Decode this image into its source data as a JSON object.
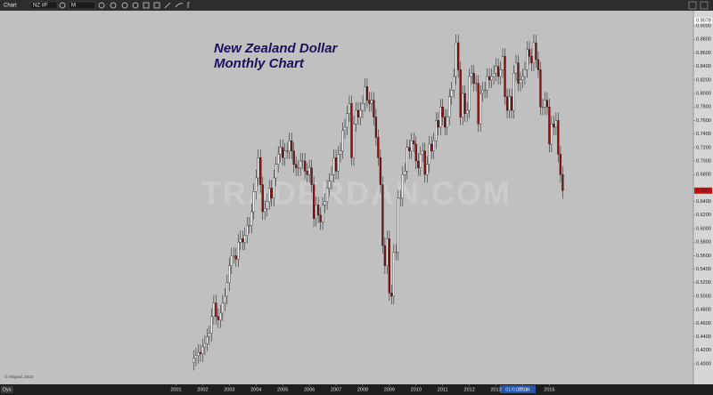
{
  "window": {
    "title": "Chart",
    "symbol": "NZ #F",
    "interval": "M",
    "range_button": "Dys",
    "copyright": "© eSignal, 2015",
    "watermark": "TRADERDAN.COM",
    "crosshair_date": "01/01/2014"
  },
  "chart_data": {
    "type": "candlestick",
    "title": "New Zealand Dollar",
    "subtitle": "Monthly Chart",
    "up_color": "#ffffff",
    "down_color": "#8b1010",
    "x": [
      2001.667,
      2001.75,
      2001.833,
      2001.917,
      2002,
      2002.083,
      2002.167,
      2002.25,
      2002.333,
      2002.417,
      2002.5,
      2002.583,
      2002.667,
      2002.75,
      2002.833,
      2002.917,
      2003,
      2003.083,
      2003.167,
      2003.25,
      2003.333,
      2003.417,
      2003.5,
      2003.583,
      2003.667,
      2003.75,
      2003.833,
      2003.917,
      2004,
      2004.083,
      2004.167,
      2004.25,
      2004.333,
      2004.417,
      2004.5,
      2004.583,
      2004.667,
      2004.75,
      2004.833,
      2004.917,
      2005,
      2005.083,
      2005.167,
      2005.25,
      2005.333,
      2005.417,
      2005.5,
      2005.583,
      2005.667,
      2005.75,
      2005.833,
      2005.917,
      2006,
      2006.083,
      2006.167,
      2006.25,
      2006.333,
      2006.417,
      2006.5,
      2006.583,
      2006.667,
      2006.75,
      2006.833,
      2006.917,
      2007,
      2007.083,
      2007.167,
      2007.25,
      2007.333,
      2007.417,
      2007.5,
      2007.583,
      2007.667,
      2007.75,
      2007.833,
      2007.917,
      2008,
      2008.083,
      2008.167,
      2008.25,
      2008.333,
      2008.417,
      2008.5,
      2008.583,
      2008.667,
      2008.75,
      2008.833,
      2008.917,
      2009,
      2009.083,
      2009.167,
      2009.25,
      2009.333,
      2009.417,
      2009.5,
      2009.583,
      2009.667,
      2009.75,
      2009.833,
      2009.917,
      2010,
      2010.083,
      2010.167,
      2010.25,
      2010.333,
      2010.417,
      2010.5,
      2010.583,
      2010.667,
      2010.75,
      2010.833,
      2010.917,
      2011,
      2011.083,
      2011.167,
      2011.25,
      2011.333,
      2011.417,
      2011.5,
      2011.583,
      2011.667,
      2011.75,
      2011.833,
      2011.917,
      2012,
      2012.083,
      2012.167,
      2012.25,
      2012.333,
      2012.417,
      2012.5,
      2012.583,
      2012.667,
      2012.75,
      2012.833,
      2012.917,
      2013,
      2013.083,
      2013.167,
      2013.25,
      2013.333,
      2013.417,
      2013.5,
      2013.583,
      2013.667,
      2013.75,
      2013.833,
      2013.917,
      2014,
      2014.083,
      2014.167,
      2014.25,
      2014.333,
      2014.417,
      2014.5,
      2014.583,
      2014.667,
      2014.75,
      2014.833,
      2014.917,
      2015,
      2015.083,
      2015.167,
      2015.25,
      2015.333,
      2015.417,
      2015.5
    ],
    "open": [
      0.402,
      0.408,
      0.412,
      0.417,
      0.415,
      0.425,
      0.43,
      0.44,
      0.445,
      0.47,
      0.49,
      0.47,
      0.465,
      0.475,
      0.49,
      0.5,
      0.52,
      0.545,
      0.56,
      0.56,
      0.555,
      0.58,
      0.585,
      0.58,
      0.59,
      0.605,
      0.605,
      0.625,
      0.655,
      0.675,
      0.705,
      0.665,
      0.625,
      0.63,
      0.64,
      0.66,
      0.645,
      0.675,
      0.695,
      0.71,
      0.72,
      0.705,
      0.715,
      0.715,
      0.73,
      0.715,
      0.695,
      0.69,
      0.69,
      0.7,
      0.7,
      0.685,
      0.68,
      0.69,
      0.665,
      0.615,
      0.635,
      0.62,
      0.61,
      0.635,
      0.64,
      0.66,
      0.67,
      0.68,
      0.705,
      0.685,
      0.71,
      0.715,
      0.745,
      0.75,
      0.77,
      0.785,
      0.705,
      0.755,
      0.775,
      0.765,
      0.775,
      0.785,
      0.81,
      0.79,
      0.785,
      0.79,
      0.765,
      0.735,
      0.705,
      0.665,
      0.575,
      0.545,
      0.585,
      0.505,
      0.5,
      0.565,
      0.565,
      0.645,
      0.645,
      0.68,
      0.685,
      0.72,
      0.715,
      0.73,
      0.725,
      0.7,
      0.69,
      0.71,
      0.715,
      0.68,
      0.695,
      0.725,
      0.715,
      0.73,
      0.76,
      0.75,
      0.78,
      0.765,
      0.75,
      0.765,
      0.795,
      0.805,
      0.825,
      0.875,
      0.835,
      0.765,
      0.8,
      0.77,
      0.775,
      0.825,
      0.83,
      0.815,
      0.815,
      0.755,
      0.8,
      0.805,
      0.805,
      0.825,
      0.82,
      0.825,
      0.83,
      0.84,
      0.825,
      0.835,
      0.855,
      0.795,
      0.775,
      0.795,
      0.775,
      0.83,
      0.845,
      0.815,
      0.82,
      0.825,
      0.835,
      0.865,
      0.855,
      0.845,
      0.875,
      0.85,
      0.835,
      0.78,
      0.78,
      0.79,
      0.78,
      0.725,
      0.755,
      0.75,
      0.76,
      0.71,
      0.68
    ],
    "high": [
      0.42,
      0.424,
      0.429,
      0.429,
      0.437,
      0.442,
      0.452,
      0.457,
      0.482,
      0.502,
      0.502,
      0.482,
      0.487,
      0.502,
      0.512,
      0.532,
      0.557,
      0.572,
      0.572,
      0.572,
      0.592,
      0.597,
      0.597,
      0.602,
      0.617,
      0.617,
      0.637,
      0.667,
      0.687,
      0.717,
      0.717,
      0.677,
      0.642,
      0.652,
      0.672,
      0.672,
      0.687,
      0.707,
      0.722,
      0.732,
      0.732,
      0.727,
      0.727,
      0.742,
      0.742,
      0.727,
      0.707,
      0.702,
      0.712,
      0.712,
      0.712,
      0.697,
      0.702,
      0.702,
      0.677,
      0.647,
      0.647,
      0.632,
      0.647,
      0.652,
      0.672,
      0.682,
      0.692,
      0.717,
      0.717,
      0.722,
      0.727,
      0.757,
      0.762,
      0.782,
      0.797,
      0.797,
      0.767,
      0.787,
      0.787,
      0.787,
      0.797,
      0.822,
      0.822,
      0.802,
      0.802,
      0.802,
      0.777,
      0.747,
      0.717,
      0.677,
      0.587,
      0.597,
      0.597,
      0.517,
      0.577,
      0.577,
      0.657,
      0.657,
      0.692,
      0.697,
      0.732,
      0.732,
      0.742,
      0.742,
      0.737,
      0.712,
      0.722,
      0.727,
      0.727,
      0.707,
      0.737,
      0.737,
      0.742,
      0.772,
      0.772,
      0.792,
      0.792,
      0.777,
      0.777,
      0.807,
      0.817,
      0.837,
      0.887,
      0.887,
      0.847,
      0.812,
      0.812,
      0.787,
      0.837,
      0.842,
      0.842,
      0.827,
      0.827,
      0.812,
      0.817,
      0.817,
      0.837,
      0.837,
      0.837,
      0.842,
      0.852,
      0.852,
      0.847,
      0.867,
      0.867,
      0.807,
      0.807,
      0.807,
      0.842,
      0.857,
      0.857,
      0.832,
      0.837,
      0.847,
      0.877,
      0.877,
      0.867,
      0.887,
      0.887,
      0.862,
      0.847,
      0.792,
      0.802,
      0.802,
      0.792,
      0.767,
      0.767,
      0.772,
      0.772,
      0.722,
      0.692
    ],
    "low": [
      0.39,
      0.396,
      0.4,
      0.403,
      0.403,
      0.413,
      0.418,
      0.428,
      0.433,
      0.458,
      0.458,
      0.453,
      0.453,
      0.463,
      0.478,
      0.488,
      0.508,
      0.533,
      0.548,
      0.543,
      0.543,
      0.568,
      0.568,
      0.568,
      0.578,
      0.593,
      0.593,
      0.613,
      0.643,
      0.663,
      0.653,
      0.613,
      0.613,
      0.618,
      0.628,
      0.633,
      0.633,
      0.663,
      0.683,
      0.698,
      0.693,
      0.693,
      0.703,
      0.703,
      0.703,
      0.683,
      0.678,
      0.678,
      0.678,
      0.688,
      0.673,
      0.668,
      0.668,
      0.653,
      0.603,
      0.603,
      0.608,
      0.598,
      0.598,
      0.623,
      0.628,
      0.648,
      0.658,
      0.668,
      0.673,
      0.673,
      0.698,
      0.703,
      0.733,
      0.738,
      0.758,
      0.693,
      0.693,
      0.743,
      0.753,
      0.753,
      0.763,
      0.773,
      0.778,
      0.773,
      0.773,
      0.753,
      0.723,
      0.693,
      0.653,
      0.563,
      0.533,
      0.533,
      0.493,
      0.488,
      0.488,
      0.553,
      0.553,
      0.633,
      0.633,
      0.668,
      0.673,
      0.703,
      0.703,
      0.713,
      0.688,
      0.678,
      0.678,
      0.698,
      0.668,
      0.668,
      0.683,
      0.703,
      0.703,
      0.718,
      0.738,
      0.738,
      0.753,
      0.738,
      0.738,
      0.753,
      0.783,
      0.793,
      0.813,
      0.823,
      0.753,
      0.753,
      0.758,
      0.758,
      0.763,
      0.813,
      0.803,
      0.803,
      0.743,
      0.743,
      0.788,
      0.793,
      0.793,
      0.808,
      0.808,
      0.813,
      0.818,
      0.813,
      0.813,
      0.823,
      0.783,
      0.763,
      0.763,
      0.763,
      0.763,
      0.818,
      0.803,
      0.803,
      0.808,
      0.813,
      0.823,
      0.843,
      0.833,
      0.833,
      0.838,
      0.823,
      0.768,
      0.768,
      0.768,
      0.768,
      0.713,
      0.713,
      0.738,
      0.738,
      0.698,
      0.668,
      0.6442
    ],
    "close": [
      0.408,
      0.412,
      0.417,
      0.415,
      0.425,
      0.43,
      0.44,
      0.445,
      0.47,
      0.49,
      0.47,
      0.465,
      0.475,
      0.49,
      0.5,
      0.52,
      0.545,
      0.56,
      0.56,
      0.555,
      0.58,
      0.585,
      0.58,
      0.59,
      0.605,
      0.605,
      0.625,
      0.655,
      0.675,
      0.705,
      0.665,
      0.625,
      0.63,
      0.64,
      0.66,
      0.645,
      0.675,
      0.695,
      0.71,
      0.72,
      0.705,
      0.715,
      0.715,
      0.73,
      0.715,
      0.695,
      0.69,
      0.69,
      0.7,
      0.7,
      0.685,
      0.68,
      0.69,
      0.665,
      0.615,
      0.635,
      0.62,
      0.61,
      0.635,
      0.64,
      0.66,
      0.67,
      0.68,
      0.705,
      0.685,
      0.71,
      0.715,
      0.745,
      0.75,
      0.77,
      0.785,
      0.705,
      0.755,
      0.775,
      0.765,
      0.775,
      0.785,
      0.81,
      0.79,
      0.785,
      0.79,
      0.765,
      0.735,
      0.705,
      0.665,
      0.575,
      0.545,
      0.585,
      0.505,
      0.5,
      0.565,
      0.565,
      0.645,
      0.645,
      0.68,
      0.685,
      0.72,
      0.715,
      0.73,
      0.725,
      0.7,
      0.69,
      0.71,
      0.715,
      0.68,
      0.695,
      0.725,
      0.715,
      0.73,
      0.76,
      0.75,
      0.78,
      0.765,
      0.75,
      0.765,
      0.795,
      0.805,
      0.825,
      0.875,
      0.835,
      0.765,
      0.8,
      0.77,
      0.775,
      0.825,
      0.83,
      0.815,
      0.815,
      0.755,
      0.8,
      0.805,
      0.805,
      0.825,
      0.82,
      0.825,
      0.83,
      0.84,
      0.825,
      0.835,
      0.855,
      0.795,
      0.775,
      0.795,
      0.775,
      0.83,
      0.845,
      0.815,
      0.82,
      0.825,
      0.835,
      0.865,
      0.855,
      0.845,
      0.875,
      0.85,
      0.835,
      0.78,
      0.78,
      0.79,
      0.78,
      0.725,
      0.755,
      0.75,
      0.76,
      0.71,
      0.68,
      0.6562
    ],
    "xlim": [
      1994.4,
      2020.4
    ],
    "xticks": [
      2001,
      2002,
      2003,
      2004,
      2005,
      2006,
      2007,
      2008,
      2009,
      2010,
      2011,
      2012,
      2013,
      2014,
      2015
    ],
    "ylim": [
      0.3697,
      0.9224
    ],
    "yticks": [
      {
        "value": 0.4,
        "label": "0.4000"
      },
      {
        "value": 0.42,
        "label": "0.4200"
      },
      {
        "value": 0.44,
        "label": "0.4400"
      },
      {
        "value": 0.46,
        "label": "0.4600"
      },
      {
        "value": 0.48,
        "label": "0.4800"
      },
      {
        "value": 0.5,
        "label": "0.5000"
      },
      {
        "value": 0.52,
        "label": "0.5200"
      },
      {
        "value": 0.54,
        "label": "0.5400"
      },
      {
        "value": 0.56,
        "label": "0.5600"
      },
      {
        "value": 0.58,
        "label": "0.5800"
      },
      {
        "value": 0.6,
        "label": "0.6000"
      },
      {
        "value": 0.62,
        "label": "0.6200"
      },
      {
        "value": 0.64,
        "label": "0.6400"
      },
      {
        "value": 0.68,
        "label": "0.6800"
      },
      {
        "value": 0.7,
        "label": "0.7000"
      },
      {
        "value": 0.72,
        "label": "0.7200"
      },
      {
        "value": 0.74,
        "label": "0.7400"
      },
      {
        "value": 0.76,
        "label": "0.7600"
      },
      {
        "value": 0.78,
        "label": "0.7800"
      },
      {
        "value": 0.8,
        "label": "0.8000"
      },
      {
        "value": 0.82,
        "label": "0.8200"
      },
      {
        "value": 0.84,
        "label": "0.8400"
      },
      {
        "value": 0.86,
        "label": "0.8600"
      },
      {
        "value": 0.88,
        "label": "0.8800"
      },
      {
        "value": 0.9,
        "label": "0.9000"
      }
    ],
    "price_markers": [
      {
        "value": 0.9078,
        "label": "0.9078",
        "color": "#ffffff"
      },
      {
        "value": 0.6562,
        "label": "0.6562",
        "color": "#cc1111"
      }
    ]
  }
}
